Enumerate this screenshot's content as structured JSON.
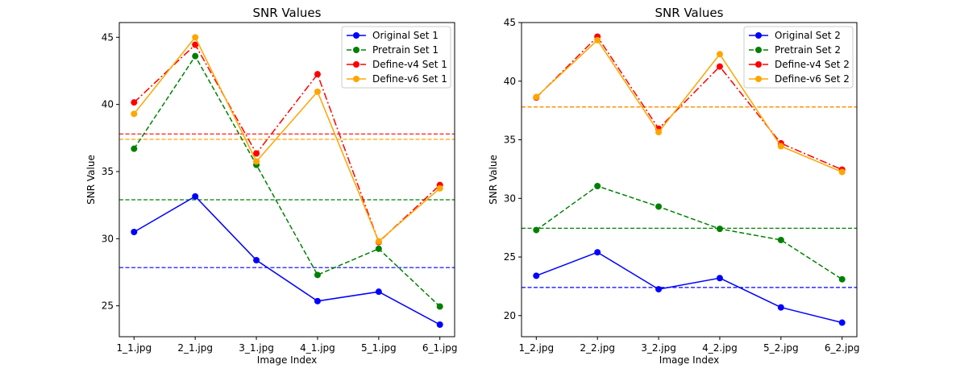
{
  "chart_data": [
    {
      "type": "line",
      "title": "SNR Values",
      "xlabel": "Image Index",
      "ylabel": "SNR Value",
      "categories": [
        "1_1.jpg",
        "2_1.jpg",
        "3_1.jpg",
        "4_1.jpg",
        "5_1.jpg",
        "6_1.jpg"
      ],
      "ylim": [
        22.7,
        46.1
      ],
      "yticks": [
        25,
        30,
        35,
        40,
        45
      ],
      "grid": false,
      "legend_position": "top-right",
      "series": [
        {
          "name": "Original Set 1",
          "color": "#0000ff",
          "linestyle": "solid",
          "values": [
            30.5,
            33.15,
            28.4,
            25.35,
            26.05,
            23.6
          ],
          "mean": 27.85
        },
        {
          "name": "Pretrain Set 1",
          "color": "#008000",
          "linestyle": "dashed",
          "values": [
            36.7,
            43.6,
            35.5,
            27.3,
            29.25,
            24.95
          ],
          "mean": 32.9
        },
        {
          "name": "Define-v4 Set 1",
          "color": "#ff0000",
          "linestyle": "dashdot",
          "values": [
            40.15,
            44.45,
            36.35,
            42.25,
            29.75,
            34.0
          ],
          "mean": 37.8
        },
        {
          "name": "Define-v6 Set 1",
          "color": "#ffa500",
          "linestyle": "solid",
          "values": [
            39.3,
            45.0,
            35.75,
            40.95,
            29.8,
            33.75
          ],
          "mean": 37.4
        }
      ]
    },
    {
      "type": "line",
      "title": "SNR Values",
      "xlabel": "Image Index",
      "ylabel": "SNR Value",
      "categories": [
        "1_2.jpg",
        "2_2.jpg",
        "3_2.jpg",
        "4_2.jpg",
        "5_2.jpg",
        "6_2.jpg"
      ],
      "ylim": [
        18.2,
        45.0
      ],
      "yticks": [
        20,
        25,
        30,
        35,
        40,
        45
      ],
      "grid": false,
      "legend_position": "top-right",
      "series": [
        {
          "name": "Original Set 2",
          "color": "#0000ff",
          "linestyle": "solid",
          "values": [
            23.4,
            25.4,
            22.25,
            23.2,
            20.7,
            19.4
          ],
          "mean": 22.4
        },
        {
          "name": "Pretrain Set 2",
          "color": "#008000",
          "linestyle": "dashed",
          "values": [
            27.3,
            31.05,
            29.3,
            27.4,
            26.45,
            23.1
          ],
          "mean": 27.45
        },
        {
          "name": "Define-v4 Set 2",
          "color": "#ff0000",
          "linestyle": "dashdot",
          "values": [
            38.6,
            43.8,
            35.95,
            41.25,
            34.7,
            32.45
          ],
          "mean": 37.8
        },
        {
          "name": "Define-v6 Set 2",
          "color": "#ffa500",
          "linestyle": "solid",
          "values": [
            38.65,
            43.5,
            35.65,
            42.3,
            34.45,
            32.25
          ],
          "mean": 37.8
        }
      ]
    }
  ]
}
